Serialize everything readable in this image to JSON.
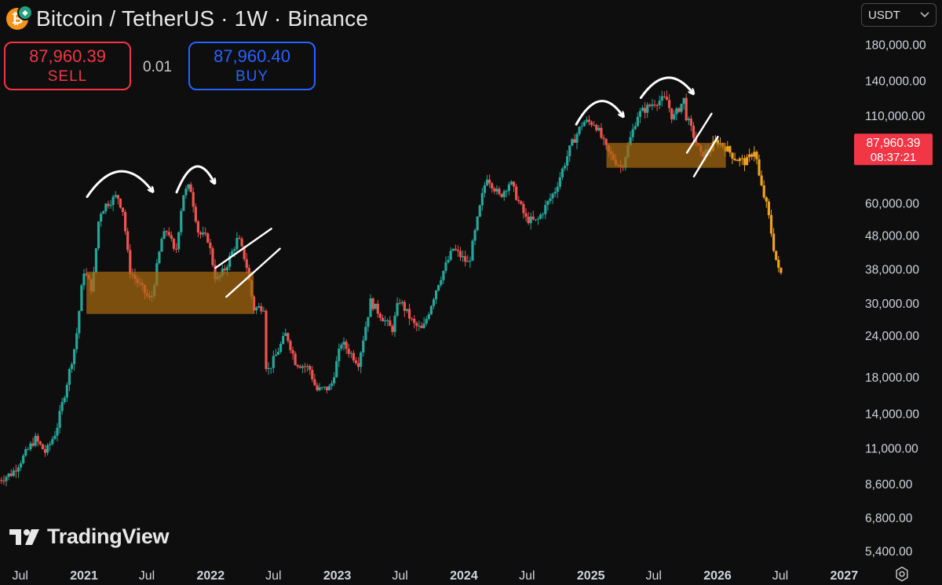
{
  "header": {
    "title": "Bitcoin / TetherUS · 1W · Binance",
    "coin_icon": "bitcoin-icon",
    "coin_symbol": "₿",
    "sub_icon": "tether-icon",
    "sub_symbol": "◆"
  },
  "trade": {
    "sell_price": "87,960.39",
    "sell_label": "SELL",
    "spread": "0.01",
    "buy_price": "87,960.40",
    "buy_label": "BUY"
  },
  "currency": {
    "value": "USDT",
    "icon": "chevron-down-icon"
  },
  "logo": {
    "text": "TradingView",
    "icon": "tradingview-logo-icon"
  },
  "settings_icon": "gear-icon",
  "colors": {
    "background": "#0e0e0e",
    "up": "#26a69a",
    "down": "#ef5350",
    "projection": "#f0a020",
    "zone": "#a86a10",
    "price_tag": "#f23645"
  },
  "chart_data": {
    "type": "candlestick",
    "timeframe": "1W",
    "y_scale": "log",
    "ylim": [
      5000,
      215000
    ],
    "y_ticks": [
      {
        "value": 180000,
        "label": "180,000.00"
      },
      {
        "value": 140000,
        "label": "140,000.00"
      },
      {
        "value": 110000,
        "label": "110,000.00"
      },
      {
        "value": 60000,
        "label": "60,000.00"
      },
      {
        "value": 48000,
        "label": "48,000.00"
      },
      {
        "value": 38000,
        "label": "38,000.00"
      },
      {
        "value": 30000,
        "label": "30,000.00"
      },
      {
        "value": 24000,
        "label": "24,000.00"
      },
      {
        "value": 18000,
        "label": "18,000.00"
      },
      {
        "value": 14000,
        "label": "14,000.00"
      },
      {
        "value": 11000,
        "label": "11,000.00"
      },
      {
        "value": 8600,
        "label": "8,600.00"
      },
      {
        "value": 6800,
        "label": "6,800.00"
      },
      {
        "value": 5400,
        "label": "5,400.00"
      }
    ],
    "x_ticks": [
      {
        "date": "2020-07-01",
        "label": "Jul",
        "bold": false
      },
      {
        "date": "2021-01-01",
        "label": "2021",
        "bold": true
      },
      {
        "date": "2021-07-01",
        "label": "Jul",
        "bold": false
      },
      {
        "date": "2022-01-01",
        "label": "2022",
        "bold": true
      },
      {
        "date": "2022-07-01",
        "label": "Jul",
        "bold": false
      },
      {
        "date": "2023-01-01",
        "label": "2023",
        "bold": true
      },
      {
        "date": "2023-07-01",
        "label": "Jul",
        "bold": false
      },
      {
        "date": "2024-01-01",
        "label": "2024",
        "bold": true
      },
      {
        "date": "2024-07-01",
        "label": "Jul",
        "bold": false
      },
      {
        "date": "2025-01-01",
        "label": "2025",
        "bold": true
      },
      {
        "date": "2025-07-01",
        "label": "Jul",
        "bold": false
      },
      {
        "date": "2026-01-01",
        "label": "2026",
        "bold": true
      },
      {
        "date": "2026-07-01",
        "label": "Jul",
        "bold": false
      },
      {
        "date": "2027-01-01",
        "label": "2027",
        "bold": true
      }
    ],
    "price_anchors": [
      [
        "2020-05-01",
        8800
      ],
      [
        "2020-06-15",
        9300
      ],
      [
        "2020-07-20",
        10500
      ],
      [
        "2020-08-20",
        11800
      ],
      [
        "2020-09-20",
        10700
      ],
      [
        "2020-10-20",
        12500
      ],
      [
        "2020-11-15",
        16500
      ],
      [
        "2020-12-15",
        23000
      ],
      [
        "2021-01-07",
        38000
      ],
      [
        "2021-02-01",
        33000
      ],
      [
        "2021-02-21",
        56000
      ],
      [
        "2021-03-14",
        60000
      ],
      [
        "2021-04-14",
        63500
      ],
      [
        "2021-05-01",
        57000
      ],
      [
        "2021-05-19",
        38000
      ],
      [
        "2021-06-10",
        35000
      ],
      [
        "2021-07-20",
        30500
      ],
      [
        "2021-08-20",
        47000
      ],
      [
        "2021-09-07",
        50500
      ],
      [
        "2021-09-28",
        41500
      ],
      [
        "2021-10-20",
        64000
      ],
      [
        "2021-11-10",
        68000
      ],
      [
        "2021-12-04",
        49000
      ],
      [
        "2022-01-01",
        47000
      ],
      [
        "2022-01-24",
        35000
      ],
      [
        "2022-02-20",
        38500
      ],
      [
        "2022-03-28",
        47500
      ],
      [
        "2022-04-20",
        40000
      ],
      [
        "2022-05-12",
        29000
      ],
      [
        "2022-06-10",
        29500
      ],
      [
        "2022-06-18",
        18500
      ],
      [
        "2022-07-10",
        20500
      ],
      [
        "2022-08-14",
        24500
      ],
      [
        "2022-09-10",
        20000
      ],
      [
        "2022-10-20",
        19200
      ],
      [
        "2022-11-09",
        16500
      ],
      [
        "2022-12-20",
        16800
      ],
      [
        "2023-01-20",
        23000
      ],
      [
        "2023-03-10",
        20000
      ],
      [
        "2023-04-14",
        30500
      ],
      [
        "2023-06-15",
        25000
      ],
      [
        "2023-07-05",
        31000
      ],
      [
        "2023-08-17",
        26000
      ],
      [
        "2023-09-11",
        25000
      ],
      [
        "2023-10-25",
        34500
      ],
      [
        "2023-12-08",
        44000
      ],
      [
        "2024-01-22",
        39500
      ],
      [
        "2024-02-28",
        62000
      ],
      [
        "2024-03-14",
        73000
      ],
      [
        "2024-04-20",
        63000
      ],
      [
        "2024-05-20",
        70000
      ],
      [
        "2024-07-05",
        54000
      ],
      [
        "2024-08-05",
        53000
      ],
      [
        "2024-09-27",
        66000
      ],
      [
        "2024-11-12",
        90000
      ],
      [
        "2024-12-17",
        106000
      ],
      [
        "2025-01-20",
        105000
      ],
      [
        "2025-02-25",
        86000
      ],
      [
        "2025-04-07",
        77000
      ],
      [
        "2025-05-22",
        111000
      ],
      [
        "2025-07-14",
        122000
      ],
      [
        "2025-08-14",
        124000
      ],
      [
        "2025-09-01",
        108000
      ],
      [
        "2025-10-06",
        125000
      ],
      [
        "2025-10-10",
        110000
      ],
      [
        "2025-11-21",
        84000
      ],
      [
        "2025-12-20",
        88000
      ],
      [
        "2026-01-05",
        93000
      ],
      [
        "2026-02-01",
        88500
      ],
      [
        "2026-03-01",
        82000
      ],
      [
        "2026-04-01",
        80000
      ],
      [
        "2026-04-26",
        87900
      ],
      [
        "2026-05-10",
        70000
      ],
      [
        "2026-06-01",
        58000
      ],
      [
        "2026-06-21",
        43000
      ],
      [
        "2026-07-05",
        37000
      ]
    ],
    "projection_start": "2025-12-08",
    "current_price": {
      "value": 87960.39,
      "label": "87,960.39",
      "timer": "08:37:21"
    },
    "zones": [
      {
        "from": "2021-01-08",
        "to": "2022-05-05",
        "low": 28000,
        "high": 37500
      },
      {
        "from": "2025-02-15",
        "to": "2026-01-25",
        "low": 77000,
        "high": 91500
      }
    ],
    "drawings": {
      "arcs": [
        {
          "from": [
            "2021-01-10",
            63000
          ],
          "to": [
            "2021-07-15",
            66000
          ],
          "peak": 76000
        },
        {
          "from": [
            "2021-09-25",
            65000
          ],
          "to": [
            "2022-01-10",
            70000
          ],
          "peak": 79000
        },
        {
          "from": [
            "2024-11-20",
            104000
          ],
          "to": [
            "2025-04-01",
            111000
          ],
          "peak": 124000
        },
        {
          "from": [
            "2025-05-25",
            125000
          ],
          "to": [
            "2025-10-20",
            130000
          ],
          "peak": 145000
        }
      ],
      "lines": [
        {
          "from": [
            "2022-01-15",
            38500
          ],
          "to": [
            "2022-06-25",
            50500
          ]
        },
        {
          "from": [
            "2022-02-15",
            31500
          ],
          "to": [
            "2022-07-20",
            44000
          ]
        },
        {
          "from": [
            "2025-10-05",
            85500
          ],
          "to": [
            "2025-12-15",
            112000
          ]
        },
        {
          "from": [
            "2025-10-25",
            72500
          ],
          "to": [
            "2026-01-02",
            95500
          ]
        }
      ]
    }
  }
}
